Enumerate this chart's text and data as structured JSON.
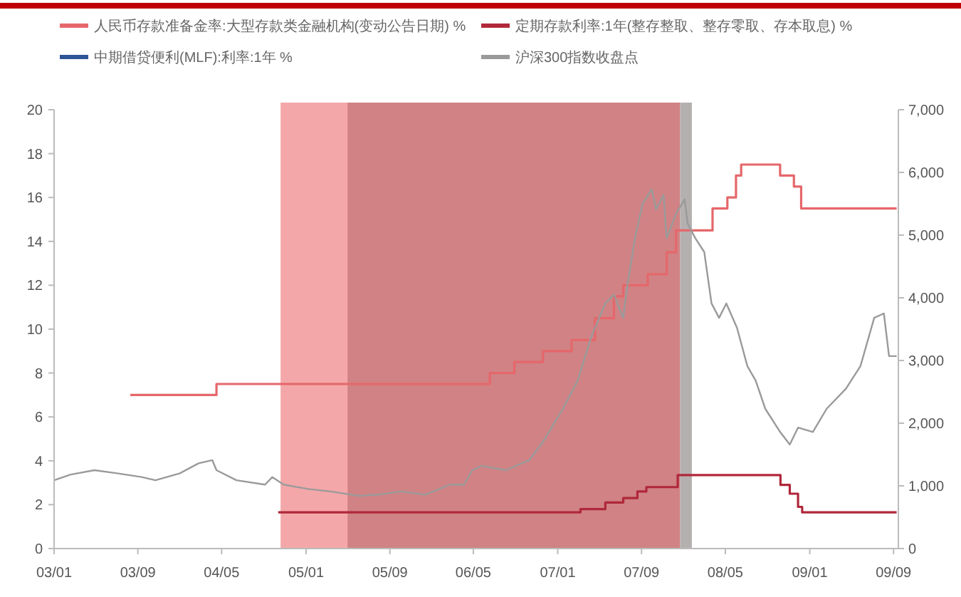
{
  "chart_data": {
    "type": "step",
    "legend": "top",
    "grid": false,
    "xlim": [
      "2003-01-01",
      "2009-09-15"
    ],
    "xticks": [
      {
        "value": "2003-01-01",
        "label": "03/01"
      },
      {
        "value": "2003-09-01",
        "label": "03/09"
      },
      {
        "value": "2004-05-01",
        "label": "04/05"
      },
      {
        "value": "2005-01-01",
        "label": "05/01"
      },
      {
        "value": "2005-09-01",
        "label": "05/09"
      },
      {
        "value": "2006-05-01",
        "label": "06/05"
      },
      {
        "value": "2007-01-01",
        "label": "07/01"
      },
      {
        "value": "2007-09-01",
        "label": "07/09"
      },
      {
        "value": "2008-05-01",
        "label": "08/05"
      },
      {
        "value": "2009-01-01",
        "label": "09/01"
      },
      {
        "value": "2009-09-01",
        "label": "09/09"
      }
    ],
    "ylim": [
      0,
      20
    ],
    "yticks": [
      0,
      2,
      4,
      6,
      8,
      10,
      12,
      14,
      16,
      18,
      20
    ],
    "y2lim": [
      0,
      7000
    ],
    "y2ticks": [
      {
        "value": 0,
        "label": "0"
      },
      {
        "value": 1000,
        "label": "1,000"
      },
      {
        "value": 2000,
        "label": "2,000"
      },
      {
        "value": 3000,
        "label": "3,000"
      },
      {
        "value": 4000,
        "label": "4,000"
      },
      {
        "value": 5000,
        "label": "5,000"
      },
      {
        "value": 6000,
        "label": "6,000"
      },
      {
        "value": 7000,
        "label": "7,000"
      }
    ],
    "bands": [
      {
        "axis": "x",
        "from": "2004-10-19",
        "to": "2005-05-01",
        "color": "#f4a7a9"
      },
      {
        "axis": "x",
        "from": "2005-05-01",
        "to": "2007-12-22",
        "color": "#d08284"
      },
      {
        "axis": "x",
        "from": "2007-12-22",
        "to": "2008-01-25",
        "color": "#b5b0b0"
      }
    ],
    "series": [
      {
        "name": "人民币存款准备金率:大型存款类金融机构(变动公告日期) %",
        "color": "#e5676b",
        "x": [
          "2003-08-10",
          "2004-04-16",
          "2006-06-18",
          "2006-08-28",
          "2006-11-19",
          "2007-02-10",
          "2007-04-19",
          "2007-06-13",
          "2007-07-10",
          "2007-09-19",
          "2007-11-13",
          "2007-12-10",
          "2008-03-25",
          "2008-05-07",
          "2008-06-01",
          "2008-06-16",
          "2008-10-07",
          "2008-11-16",
          "2008-12-07",
          "2009-09-10"
        ],
        "values": [
          7,
          7.5,
          8,
          8.5,
          9,
          9.5,
          10.5,
          11.5,
          12,
          12.5,
          13.5,
          14.5,
          15.5,
          16,
          17,
          17.5,
          17,
          16.5,
          15.5,
          15.5
        ]
      },
      {
        "name": "定期存款利率:1年(整存整取、整存零取、存本取息) %",
        "color": "#b0283a",
        "x": [
          "2004-10-12",
          "2007-03-08",
          "2007-05-19",
          "2007-07-10",
          "2007-08-20",
          "2007-09-15",
          "2007-12-15",
          "2008-10-08",
          "2008-11-04",
          "2008-11-28",
          "2008-12-10",
          "2009-09-10"
        ],
        "values": [
          1.65,
          1.8,
          2.1,
          2.3,
          2.6,
          2.8,
          3.35,
          2.9,
          2.5,
          1.9,
          1.65,
          1.65
        ]
      },
      {
        "name": "中期借贷便利(MLF):利率:1年 %",
        "color": "#2f5597"
      },
      {
        "name": "沪深300指数收盘点",
        "color": "#9a9a9a",
        "type": "line",
        "axis": "y2",
        "x": [
          "2003-01-01",
          "2003-02-18",
          "2003-04-28",
          "2003-07-03",
          "2003-09-12",
          "2003-10-22",
          "2004-01-01",
          "2004-02-24",
          "2004-04-04",
          "2004-04-16",
          "2004-06-13",
          "2004-09-04",
          "2004-09-25",
          "2004-10-28",
          "2005-01-07",
          "2005-03-13",
          "2005-06-04",
          "2005-07-28",
          "2005-10-04",
          "2005-12-13",
          "2006-02-22",
          "2006-04-04",
          "2006-04-28",
          "2006-05-25",
          "2006-08-04",
          "2006-10-10",
          "2006-11-19",
          "2007-01-16",
          "2007-02-28",
          "2007-04-07",
          "2007-05-19",
          "2007-06-13",
          "2007-07-10",
          "2007-07-22",
          "2007-08-13",
          "2007-09-04",
          "2007-10-01",
          "2007-10-13",
          "2007-11-04",
          "2007-11-13",
          "2007-12-10",
          "2008-01-04",
          "2008-01-13",
          "2008-02-04",
          "2008-03-01",
          "2008-03-22",
          "2008-04-13",
          "2008-05-04",
          "2008-06-04",
          "2008-07-04",
          "2008-07-28",
          "2008-08-25",
          "2008-10-07",
          "2008-11-04",
          "2008-11-28",
          "2009-01-10",
          "2009-02-19",
          "2009-04-16",
          "2009-05-28",
          "2009-07-07",
          "2009-08-04",
          "2009-08-19",
          "2009-09-10"
        ],
        "values": [
          1090,
          1180,
          1250,
          1200,
          1140,
          1090,
          1200,
          1360,
          1410,
          1250,
          1090,
          1020,
          1140,
          1020,
          950,
          910,
          840,
          860,
          910,
          860,
          1020,
          1020,
          1250,
          1320,
          1250,
          1410,
          1700,
          2230,
          2680,
          3360,
          3910,
          4050,
          3680,
          4200,
          4950,
          5500,
          5730,
          5410,
          5640,
          4950,
          5340,
          5570,
          5180,
          4950,
          4730,
          3910,
          3680,
          3910,
          3520,
          2910,
          2680,
          2230,
          1860,
          1660,
          1930,
          1860,
          2230,
          2550,
          2910,
          3680,
          3750,
          3070,
          3070
        ]
      }
    ]
  }
}
